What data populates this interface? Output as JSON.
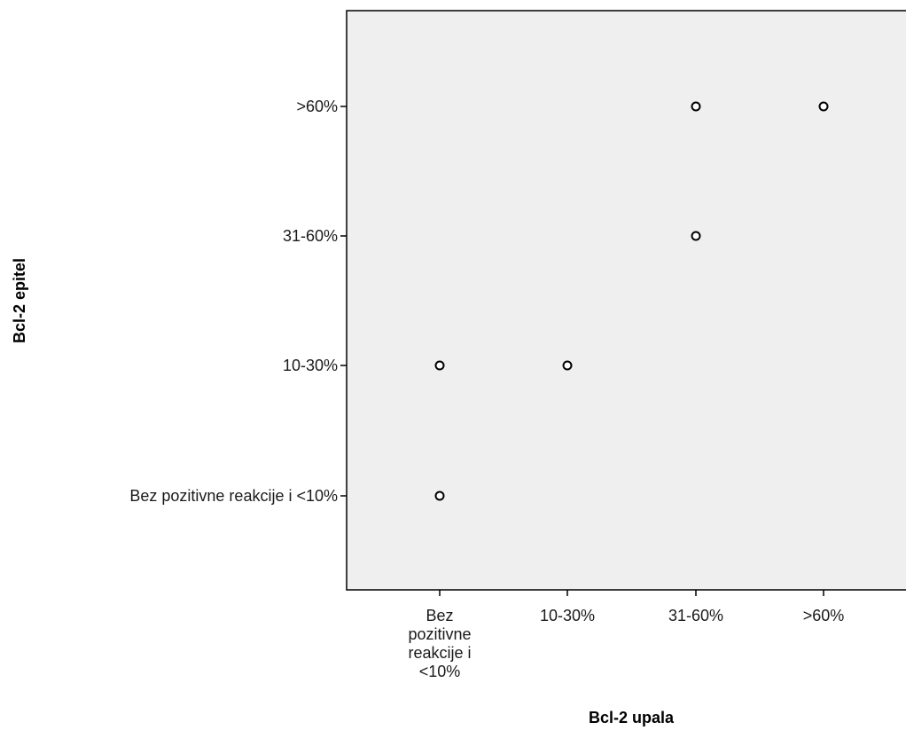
{
  "chart_data": {
    "type": "scatter",
    "xlabel": "Bcl-2 upala",
    "ylabel": "Bcl-2 epitel",
    "x_categories": [
      [
        "Bez",
        "pozitivne",
        "reakcije i",
        "<10%"
      ],
      [
        "10-30%"
      ],
      [
        "31-60%"
      ],
      [
        ">60%"
      ]
    ],
    "y_categories": [
      "Bez pozitivne reakcije i <10%",
      "10-30%",
      "31-60%",
      ">60%"
    ],
    "points": [
      {
        "x": "Bez pozitivne reakcije i <10%",
        "y": "Bez pozitivne reakcije i <10%"
      },
      {
        "x": "Bez pozitivne reakcije i <10%",
        "y": "10-30%"
      },
      {
        "x": "10-30%",
        "y": "10-30%"
      },
      {
        "x": "31-60%",
        "y": "31-60%"
      },
      {
        "x": "31-60%",
        "y": ">60%"
      },
      {
        "x": ">60%",
        "y": ">60%"
      }
    ],
    "grid": false,
    "legend": "none"
  },
  "colors": {
    "plot_background": "#efefef",
    "axis": "#000000",
    "marker_stroke": "#000000",
    "marker_fill": "#ffffff",
    "text": "#1a1a1a"
  }
}
